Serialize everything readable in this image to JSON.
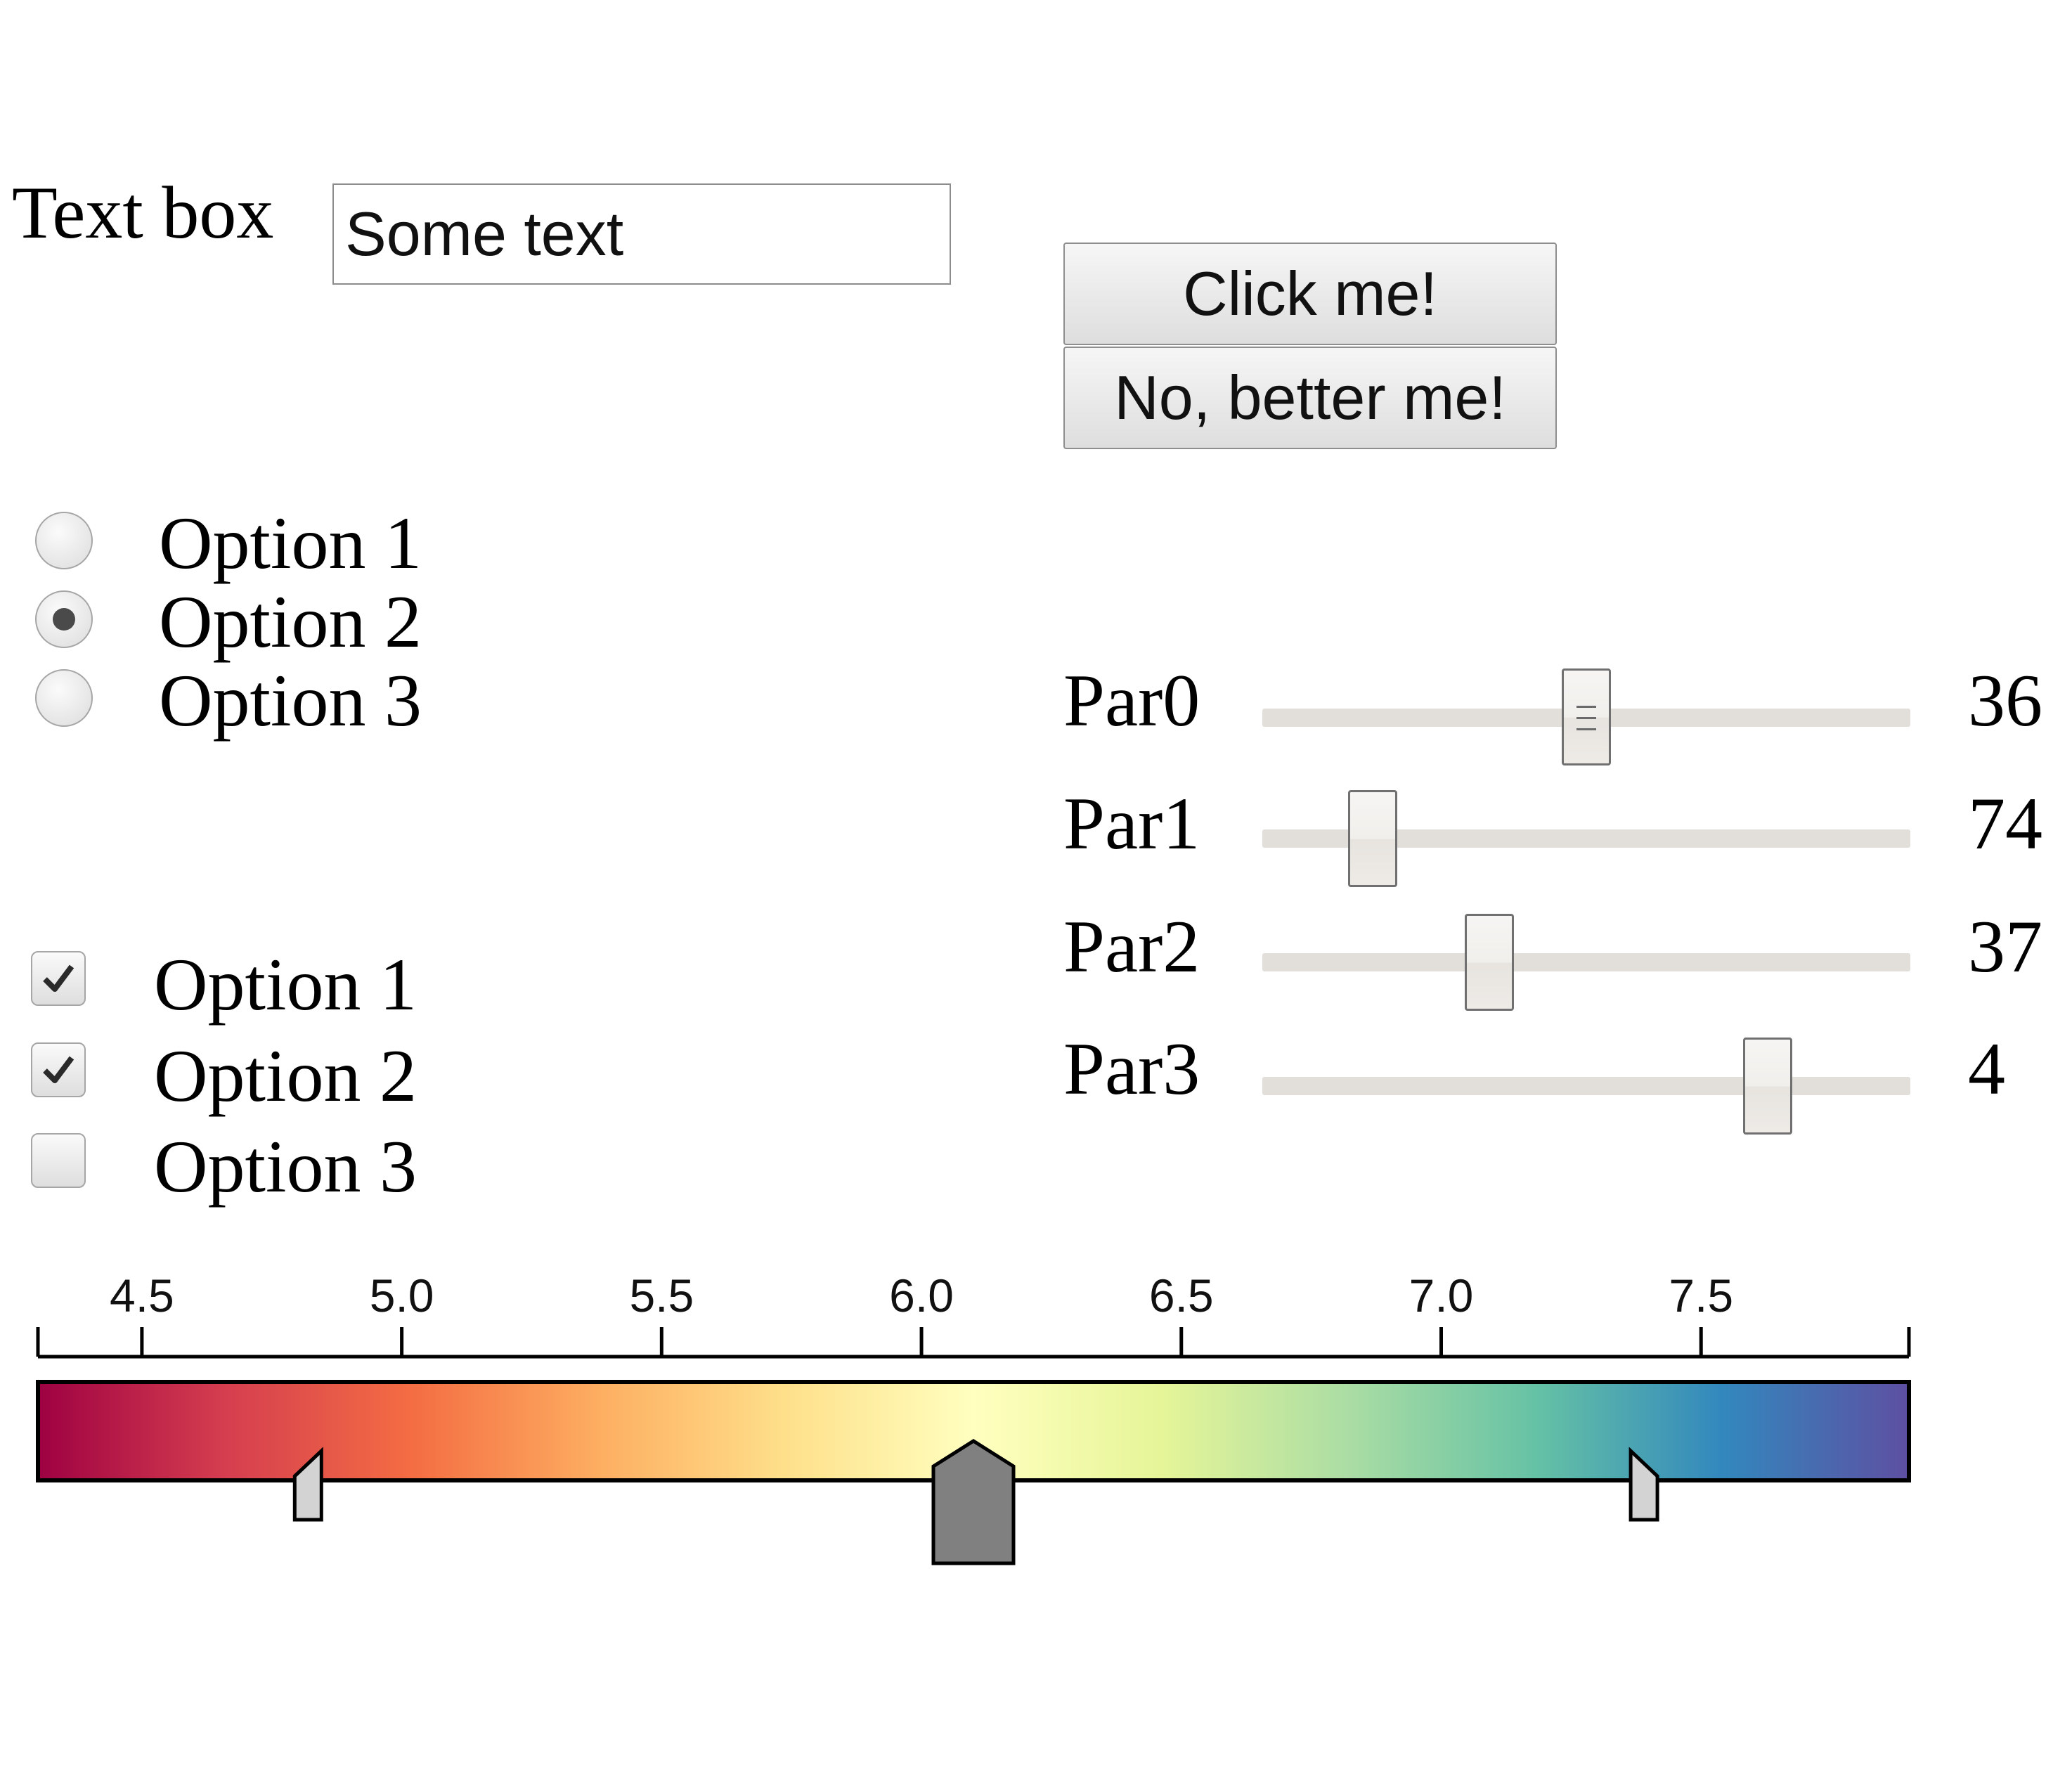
{
  "textbox": {
    "label": "Text box",
    "value": "Some text"
  },
  "buttons": {
    "click_label": "Click me!",
    "better_label": "No, better me!"
  },
  "radio": {
    "options": [
      "Option 1",
      "Option 2",
      "Option 3"
    ],
    "selected_index": 1
  },
  "checkboxes": {
    "options": [
      "Option 1",
      "Option 2",
      "Option 3"
    ],
    "checked": [
      true,
      true,
      false
    ]
  },
  "sliders": [
    {
      "label": "Par0",
      "value": "36",
      "position": 0.5
    },
    {
      "label": "Par1",
      "value": "74",
      "position": 0.17
    },
    {
      "label": "Par2",
      "value": "37",
      "position": 0.35
    },
    {
      "label": "Par3",
      "value": "4",
      "position": 0.78
    }
  ],
  "colorbar": {
    "colormap": "Spectral",
    "colors": [
      "#9e0142",
      "#d53e4f",
      "#f46d43",
      "#fdae61",
      "#fee08b",
      "#ffffbf",
      "#e6f598",
      "#abdda4",
      "#66c2a5",
      "#3288bd",
      "#5e4fa2"
    ],
    "range": [
      4.3,
      7.9
    ],
    "ticks": [
      "4.5",
      "5.0",
      "5.5",
      "6.0",
      "6.5",
      "7.0",
      "7.5"
    ],
    "handles": {
      "low": 4.84,
      "mid": 6.1,
      "high": 7.37
    }
  }
}
